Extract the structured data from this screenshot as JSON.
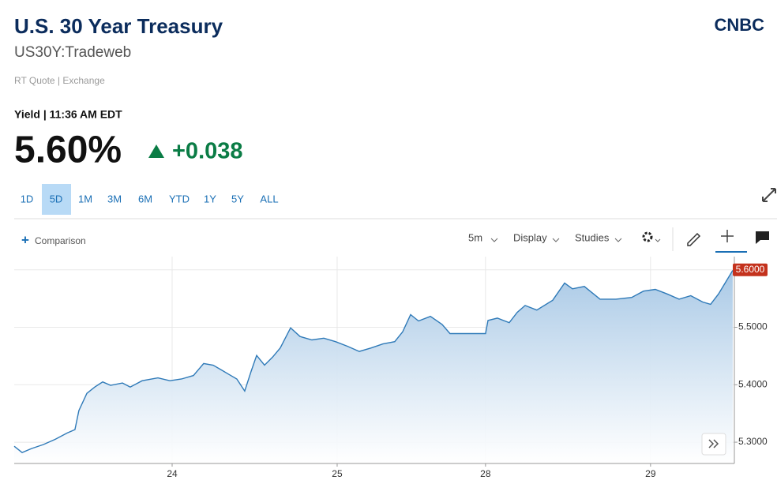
{
  "header": {
    "title": "U.S. 30 Year Treasury",
    "symbol": "US30Y:Tradeweb",
    "quote_type": "RT Quote | Exchange",
    "logo": "CNBC"
  },
  "quote": {
    "label": "Yield | 11:36 AM EDT",
    "price": "5.60%",
    "change": "+0.038"
  },
  "ranges": [
    "1D",
    "5D",
    "1M",
    "3M",
    "6M",
    "YTD",
    "1Y",
    "5Y",
    "ALL"
  ],
  "active_range": 1,
  "toolbar": {
    "comparison": "Comparison",
    "interval": "5m",
    "display": "Display",
    "studies": "Studies"
  },
  "chart_data": {
    "type": "line",
    "color": "#2f7ab8",
    "grid": true,
    "x": [
      0,
      0.048,
      0.105,
      0.177,
      0.249,
      0.321,
      0.368,
      0.392,
      0.44,
      0.488,
      0.536,
      0.584,
      0.656,
      0.703,
      0.775,
      0.871,
      0.943,
      1.014,
      1.086,
      1.148,
      1.206,
      1.254,
      1.301,
      1.349,
      1.397,
      1.435,
      1.469,
      1.517,
      1.565,
      1.612,
      1.675,
      1.732,
      1.804,
      1.876,
      1.947,
      2.019,
      2.091,
      2.163,
      2.234,
      2.306,
      2.354,
      2.402,
      2.45,
      2.522,
      2.593,
      2.641,
      2.689,
      2.856,
      2.871,
      2.928,
      3.0,
      3.048,
      3.096,
      3.167,
      3.263,
      3.335,
      3.383,
      3.455,
      3.55,
      3.646,
      3.742,
      3.813,
      3.885,
      3.957,
      4.029,
      4.1,
      4.172,
      4.22,
      4.268,
      4.316,
      4.354
    ],
    "values": [
      5.293,
      5.282,
      5.289,
      5.296,
      5.305,
      5.316,
      5.322,
      5.355,
      5.385,
      5.396,
      5.405,
      5.399,
      5.403,
      5.396,
      5.407,
      5.412,
      5.407,
      5.41,
      5.416,
      5.437,
      5.434,
      5.426,
      5.418,
      5.41,
      5.389,
      5.423,
      5.451,
      5.434,
      5.448,
      5.464,
      5.499,
      5.484,
      5.478,
      5.481,
      5.475,
      5.467,
      5.458,
      5.464,
      5.471,
      5.475,
      5.492,
      5.522,
      5.511,
      5.519,
      5.505,
      5.489,
      5.489,
      5.489,
      5.512,
      5.516,
      5.508,
      5.526,
      5.538,
      5.53,
      5.547,
      5.577,
      5.567,
      5.571,
      5.549,
      5.549,
      5.552,
      5.563,
      5.566,
      5.558,
      5.549,
      5.555,
      5.544,
      5.54,
      5.558,
      5.581,
      5.599
    ],
    "xlim": [
      0,
      4.364
    ],
    "xticks": [
      {
        "value": 0.957,
        "label": "24"
      },
      {
        "value": 1.957,
        "label": "25"
      },
      {
        "value": 2.856,
        "label": "28"
      },
      {
        "value": 3.856,
        "label": "29"
      }
    ],
    "ylim": [
      5.263,
      5.623
    ],
    "yticks": [
      {
        "value": 5.3,
        "label": "5.3000"
      },
      {
        "value": 5.4,
        "label": "5.4000"
      },
      {
        "value": 5.5,
        "label": "5.5000"
      },
      {
        "value": 5.6,
        "label": "5.6000"
      }
    ],
    "current": {
      "value": 5.6,
      "label": "5.6000"
    }
  }
}
